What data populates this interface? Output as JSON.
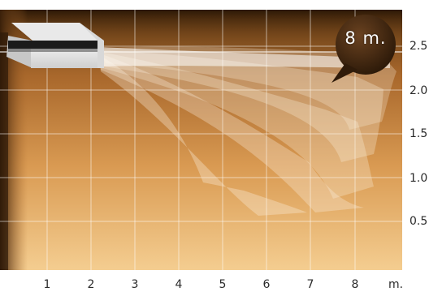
{
  "diagram": {
    "x_axis": {
      "ticks": [
        "1",
        "2",
        "3",
        "4",
        "5",
        "6",
        "7",
        "8"
      ],
      "unit": "m."
    },
    "y_axis": {
      "ticks": [
        "2.5",
        "2.0",
        "1.5",
        "1.0",
        "0.5"
      ]
    },
    "callout": "8 m.",
    "colors": {
      "background_top": "#4a2e12",
      "background_bottom": "#f3c98a",
      "grid": "#ffffff",
      "airflow": "#fbf1df",
      "callout_bubble": "#3a2410",
      "page": "#ffffff"
    },
    "unit_icon": "ceiling-air-conditioner-icon"
  }
}
